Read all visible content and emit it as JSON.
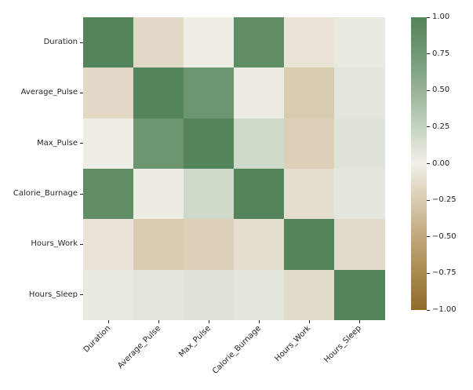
{
  "figure": {
    "background": "#ffffff",
    "text_color": "#262626",
    "title": ""
  },
  "chart_data": {
    "type": "heatmap",
    "title": "",
    "xlabel": "",
    "ylabel": "",
    "categories": [
      "Duration",
      "Average_Pulse",
      "Max_Pulse",
      "Calorie_Burnage",
      "Hours_Work",
      "Hours_Sleep"
    ],
    "row_labels": [
      "Duration",
      "Average_Pulse",
      "Max_Pulse",
      "Calorie_Burnage",
      "Hours_Work",
      "Hours_Sleep"
    ],
    "col_labels": [
      "Duration",
      "Average_Pulse",
      "Max_Pulse",
      "Calorie_Burnage",
      "Hours_Work",
      "Hours_Sleep"
    ],
    "matrix": [
      [
        1.0,
        -0.16,
        0.01,
        0.89,
        -0.08,
        0.05
      ],
      [
        -0.16,
        1.0,
        0.79,
        0.03,
        -0.25,
        0.08
      ],
      [
        0.01,
        0.79,
        1.0,
        0.2,
        -0.22,
        0.1
      ],
      [
        0.89,
        0.03,
        0.2,
        1.0,
        -0.12,
        0.08
      ],
      [
        -0.08,
        -0.25,
        -0.22,
        -0.12,
        1.0,
        -0.14
      ],
      [
        0.05,
        0.08,
        0.1,
        0.08,
        -0.14,
        1.0
      ]
    ],
    "vmin": -1.0,
    "vmax": 1.0,
    "colorbar": {
      "position": "right",
      "tick_values": [
        1.0,
        0.75,
        0.5,
        0.25,
        0.0,
        -0.25,
        -0.5,
        -0.75,
        -1.0
      ],
      "tick_labels": [
        "1.00",
        "0.75",
        "0.50",
        "0.25",
        "0.00",
        "−0.25",
        "−0.50",
        "−0.75",
        "−1.00"
      ]
    },
    "palette": {
      "name": "diverging-brown-white-green",
      "stops": [
        {
          "value": -1.0,
          "color": "#8f6c2a"
        },
        {
          "value": -0.75,
          "color": "#a98a4d"
        },
        {
          "value": -0.5,
          "color": "#c1a87c"
        },
        {
          "value": -0.25,
          "color": "#d8ccb1"
        },
        {
          "value": 0.0,
          "color": "#f1efe8"
        },
        {
          "value": 0.25,
          "color": "#c5d4c1"
        },
        {
          "value": 0.5,
          "color": "#97b296"
        },
        {
          "value": 0.75,
          "color": "#6f9a73"
        },
        {
          "value": 1.0,
          "color": "#548459"
        }
      ]
    },
    "grid": false,
    "x_tick_rotation": 45,
    "legend_position": "right"
  }
}
